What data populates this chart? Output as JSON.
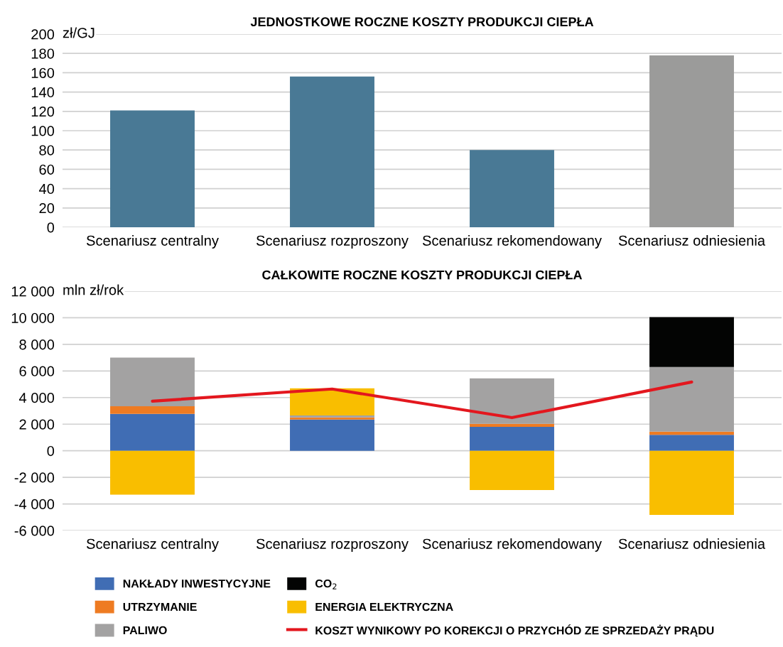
{
  "chart_data": [
    {
      "type": "bar",
      "title": "JEDNOSTKOWE ROCZNE KOSZTY PRODUKCJI CIEPŁA",
      "ylabel": "zł/GJ",
      "categories": [
        "Scenariusz centralny",
        "Scenariusz rozproszony",
        "Scenariusz rekomendowany",
        "Scenariusz odniesienia"
      ],
      "values": [
        121,
        156,
        80,
        178
      ],
      "colors": [
        "#497995",
        "#497995",
        "#497995",
        "#9b9b9a"
      ],
      "ylim": [
        0,
        200
      ],
      "yticks": [
        0,
        20,
        40,
        60,
        80,
        100,
        120,
        140,
        160,
        180,
        200
      ],
      "grid": "y",
      "legend": false
    },
    {
      "type": "bar",
      "title": "CAŁKOWITE ROCZNE KOSZTY PRODUKCJI CIEPŁA",
      "ylabel": "mln zł/rok",
      "stacked": true,
      "categories": [
        "Scenariusz centralny",
        "Scenariusz rozproszony",
        "Scenariusz rekomendowany",
        "Scenariusz odniesienia"
      ],
      "series": [
        {
          "name": "NAKŁADY INWESTYCYJNE",
          "color": "#406db4",
          "values": [
            2770,
            2350,
            1800,
            1200
          ]
        },
        {
          "name": "UTRZYMANIE",
          "color": "#ee7b22",
          "values": [
            580,
            150,
            230,
            240
          ]
        },
        {
          "name": "PALIWO",
          "color": "#a3a2a2",
          "values": [
            3650,
            150,
            3420,
            4860
          ]
        },
        {
          "name": "CO$_{2}$",
          "color": "#030403",
          "values": [
            null,
            null,
            null,
            3750
          ]
        },
        {
          "name": "ENERGIA ELEKTRYCZNA",
          "color": "#f9be00",
          "values": [
            -3300,
            2050,
            -2950,
            -4830
          ]
        },
        {
          "name": "KOSZT WYNIKOWY PO KOREKCJI O PRZYCHÓD ZE SPRZEDAŻY PRĄDU",
          "color": "#e3171e",
          "type": "line",
          "values": [
            3730,
            4640,
            2490,
            5170
          ]
        }
      ],
      "ylim": [
        -6000,
        12000
      ],
      "yticks": [
        {
          "value": -6000,
          "label": "-6 000"
        },
        {
          "value": -4000,
          "label": "-4 000"
        },
        {
          "value": -2000,
          "label": "-2 000"
        },
        0,
        {
          "value": 2000,
          "label": "2 000"
        },
        {
          "value": 4000,
          "label": "4 000"
        },
        {
          "value": 6000,
          "label": "6 000"
        },
        {
          "value": 8000,
          "label": "8 000"
        },
        {
          "value": 10000,
          "label": "10 000"
        },
        {
          "value": 12000,
          "label": "12 000"
        }
      ],
      "grid": "y",
      "legend": "bottom"
    }
  ]
}
